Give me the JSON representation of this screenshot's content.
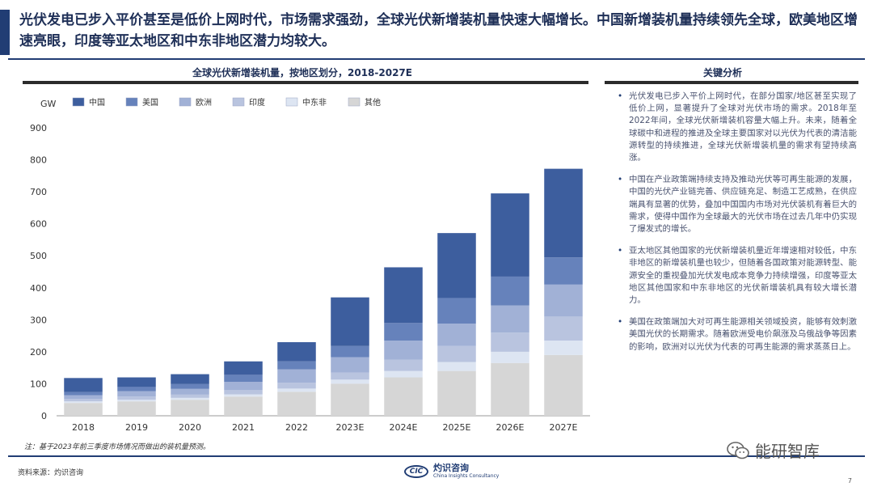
{
  "headline": "光伏发电已步入平价甚至是低价上网时代，市场需求强劲，全球光伏新增装机量快速大幅增长。中国新增装机量持续领先全球，欧美地区增速亮眼，印度等亚太地区和中东非地区潜力均较大。",
  "chart_title": "全球光伏新增装机量，按地区划分，2018-2027E",
  "side_panel": {
    "title": "关键分析",
    "bullets": [
      "光伏发电已步入平价上网时代，在部分国家/地区甚至实现了低价上网，显著提升了全球对光伏市场的需求。2018年至2022年间，全球光伏新增装机容量大幅上升。未来，随着全球碳中和进程的推进及全球主要国家对以光伏为代表的清洁能源转型的持续推进，全球光伏新增装机量的需求有望持续高涨。",
      "中国在产业政策端持续支持及推动光伏等可再生能源的发展，中国的光伏产业链完善、供应链充足、制造工艺成熟，在供应端具有显著的优势，叠加中国国内市场对光伏装机有着巨大的需求，使得中国作为全球最大的光伏市场在过去几年中仍实现了爆发式的增长。",
      "亚太地区其他国家的光伏新增装机量近年增速相对较低，中东非地区的新增装机量也较少，但随着各国政策对能源转型、能源安全的重视叠加光伏发电成本竞争力持续增强，印度等亚太地区其他国家和中东非地区的光伏新增装机具有较大增长潜力。",
      "美国在政策端加大对可再生能源相关领域投资，能够有效刺激美国光伏的长期需求。随着欧洲受电价飙涨及乌俄战争等因素的影响，欧洲对以光伏为代表的可再生能源的需求蒸蒸日上。"
    ]
  },
  "note": "注：基于2023年前三季度市场情况而做出的装机量预测。",
  "source": "资料来源：灼识咨询",
  "logo": {
    "mark": "CIC",
    "cn": "灼识咨询",
    "en": "China Insights Consultancy"
  },
  "page_number": "7",
  "wechat_label": "能研智库",
  "chart_data": {
    "type": "bar",
    "stacked": true,
    "title": "全球光伏新增装机量，按地区划分，2018-2027E",
    "ylabel": "GW",
    "ylim": [
      0,
      900
    ],
    "yticks": [
      0,
      100,
      200,
      300,
      400,
      500,
      600,
      700,
      800,
      900
    ],
    "legend_position": "top",
    "categories": [
      "2018",
      "2019",
      "2020",
      "2021",
      "2022",
      "2023E",
      "2024E",
      "2025E",
      "2026E",
      "2027E"
    ],
    "series": [
      {
        "name": "其他",
        "color": "#d6d6d6",
        "values": [
          40,
          45,
          50,
          60,
          75,
          100,
          120,
          140,
          165,
          190
        ]
      },
      {
        "name": "中东非",
        "color": "#dde5f2",
        "values": [
          5,
          5,
          6,
          7,
          10,
          13,
          20,
          28,
          35,
          45
        ]
      },
      {
        "name": "印度",
        "color": "#b9c4df",
        "values": [
          8,
          10,
          10,
          13,
          18,
          22,
          35,
          50,
          60,
          75
        ]
      },
      {
        "name": "欧洲",
        "color": "#a1b1d6",
        "values": [
          11,
          17,
          18,
          26,
          42,
          48,
          60,
          70,
          85,
          100
        ]
      },
      {
        "name": "美国",
        "color": "#6682bb",
        "values": [
          10,
          13,
          15,
          22,
          25,
          35,
          55,
          80,
          90,
          85
        ]
      },
      {
        "name": "中国",
        "color": "#3d5e9e",
        "values": [
          44,
          30,
          31,
          42,
          60,
          152,
          174,
          203,
          260,
          277
        ]
      }
    ],
    "legend_order": [
      "中国",
      "美国",
      "欧洲",
      "印度",
      "中东非",
      "其他"
    ]
  }
}
